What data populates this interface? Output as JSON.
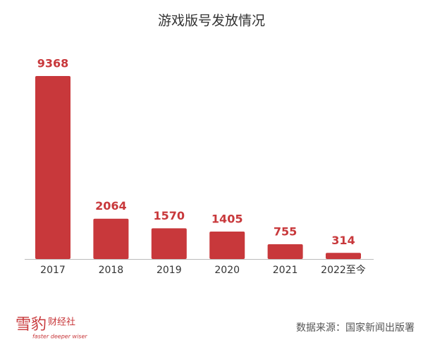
{
  "chart_data": {
    "type": "bar",
    "title": "游戏版号发放情况",
    "categories": [
      "2017",
      "2018",
      "2019",
      "2020",
      "2021",
      "2022至今"
    ],
    "values": [
      9368,
      2064,
      1570,
      1405,
      755,
      314
    ],
    "color": "#c8383b"
  },
  "footer": {
    "logo": "雪豹",
    "logo_sub": "财经社",
    "slogan": "faster deeper wiser",
    "source": "数据来源：国家新闻出版署"
  }
}
